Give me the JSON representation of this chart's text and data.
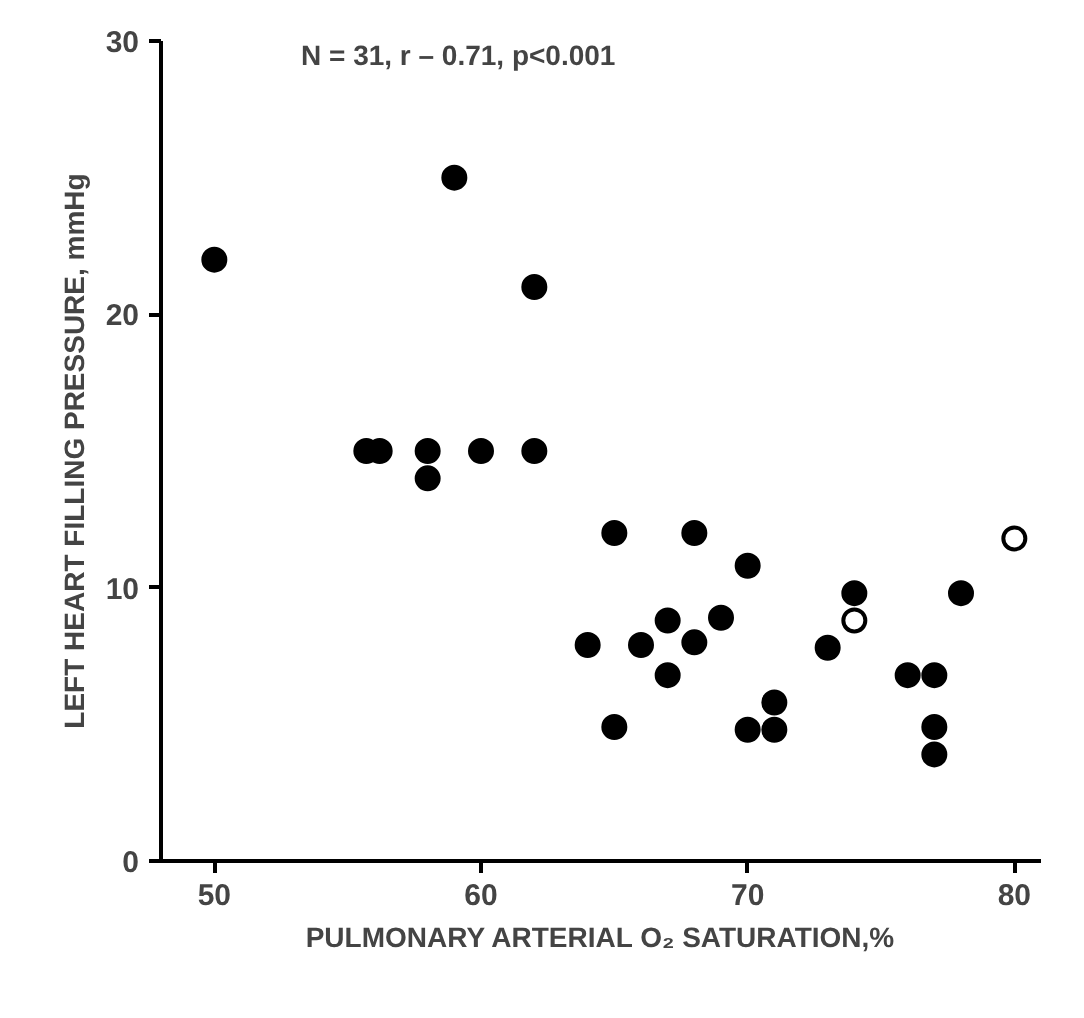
{
  "chart_data": {
    "type": "scatter",
    "xlabel": "PULMONARY ARTERIAL O₂ SATURATION,%",
    "ylabel": "LEFT HEART FILLING PRESSURE, mmHg",
    "annotations": [
      "N = 31, r – 0.71, p<0.001"
    ],
    "xlim": [
      48,
      81
    ],
    "ylim": [
      0,
      30
    ],
    "xticks": [
      50,
      60,
      70,
      80
    ],
    "yticks": [
      0,
      10,
      20,
      30
    ],
    "grid": false,
    "marker": "circle",
    "series": [
      {
        "color": "#000000",
        "x": [
          50,
          59,
          62,
          55.7,
          56.2,
          58,
          58,
          60,
          62,
          65,
          68,
          70,
          64,
          65,
          66,
          67,
          67,
          68,
          69,
          70,
          71,
          71,
          73,
          74,
          76,
          77,
          77,
          77,
          78
        ],
        "values": [
          22,
          25,
          21,
          15,
          15,
          15,
          14,
          15,
          15,
          12,
          12,
          10.8,
          7.9,
          4.9,
          7.9,
          8.8,
          6.8,
          8,
          8.9,
          4.8,
          5.8,
          4.8,
          7.8,
          9.8,
          6.8,
          6.8,
          4.9,
          3.9,
          9.8
        ]
      },
      {
        "color": "#ffffff",
        "x": [
          80,
          74
        ],
        "values": [
          11.8,
          8.8
        ]
      }
    ]
  }
}
